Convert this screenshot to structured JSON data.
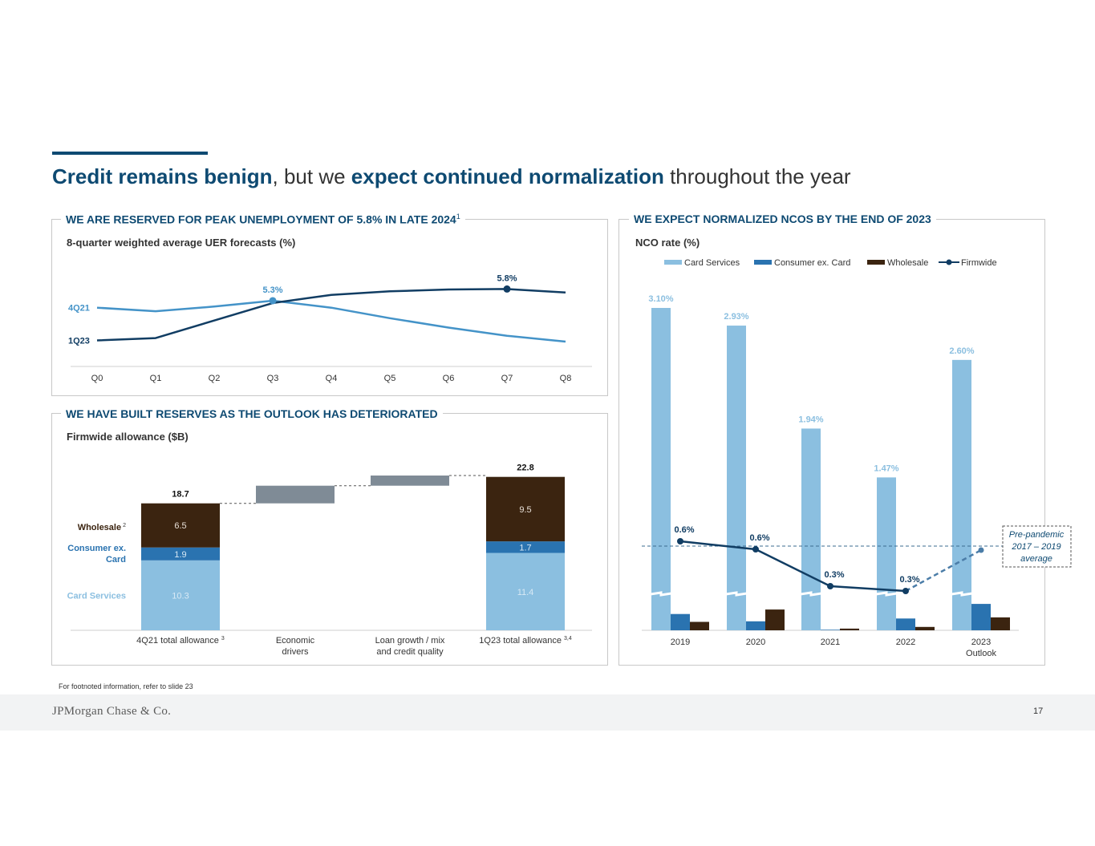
{
  "headline": {
    "part1": "Credit remains benign",
    "part2": ", but we ",
    "part3": "expect continued normalization",
    "part4": " throughout the year"
  },
  "panel_uer": {
    "title": "WE ARE RESERVED FOR PEAK UNEMPLOYMENT OF 5.8% IN LATE 2024",
    "sup": "1",
    "subtitle": "8-quarter weighted average UER forecasts (%)"
  },
  "panel_allowance": {
    "title": "WE HAVE BUILT RESERVES AS THE OUTLOOK HAS DETERIORATED",
    "subtitle": "Firmwide allowance ($B)"
  },
  "panel_nco": {
    "title": "WE EXPECT NORMALIZED NCOS BY THE END OF 2023",
    "subtitle": "NCO rate (%)"
  },
  "footnote": "For footnoted information, refer to slide 23",
  "logo": "JPMorgan Chase & Co.",
  "page_number": "17",
  "colors": {
    "brand": "#0e4a72",
    "card": "#8bbfe0",
    "consumer": "#2a73b0",
    "wholesale": "#3b2410",
    "firmwide": "#113d63",
    "line4q21": "#4493c8",
    "waterfall": "#7f8b96"
  },
  "chart_data": [
    {
      "type": "line",
      "title": "8-quarter weighted average UER forecasts (%)",
      "categories": [
        "Q0",
        "Q1",
        "Q2",
        "Q3",
        "Q4",
        "Q5",
        "Q6",
        "Q7",
        "Q8"
      ],
      "ylim": [
        3.0,
        6.5
      ],
      "series": [
        {
          "name": "4Q21",
          "values": [
            5.0,
            4.85,
            5.05,
            5.3,
            5.0,
            4.55,
            4.15,
            3.8,
            3.55
          ]
        },
        {
          "name": "1Q23",
          "values": [
            3.6,
            3.7,
            4.45,
            5.2,
            5.55,
            5.7,
            5.78,
            5.8,
            5.65
          ]
        }
      ],
      "annotations": [
        {
          "series": "4Q21",
          "category": "Q3",
          "label": "5.3%"
        },
        {
          "series": "1Q23",
          "category": "Q7",
          "label": "5.8%"
        }
      ]
    },
    {
      "type": "bar",
      "subtype": "waterfall",
      "title": "Firmwide allowance ($B)",
      "categories": [
        "4Q21 total allowance",
        "Economic drivers",
        "Loan growth / mix and credit quality",
        "1Q23 total allowance"
      ],
      "category_superscripts": [
        "3",
        "",
        "",
        "3,4"
      ],
      "segments": [
        "Card Services",
        "Consumer ex. Card",
        "Wholesale"
      ],
      "segment_labels": [
        "Card Services",
        "Consumer ex. Card",
        "Wholesale"
      ],
      "segment_superscripts": [
        "",
        "",
        "2"
      ],
      "start": {
        "values": [
          10.3,
          1.9,
          6.5
        ],
        "labels": [
          "10.3",
          "1.9",
          "6.5"
        ],
        "total": 18.7,
        "total_label": "18.7"
      },
      "end": {
        "values": [
          11.4,
          1.7,
          9.5
        ],
        "labels": [
          "11.4",
          "1.7",
          "9.5"
        ],
        "total": 22.8,
        "total_label": "22.8"
      },
      "steps": [
        {
          "name": "Economic drivers",
          "from": 18.7,
          "to": 21.3
        },
        {
          "name": "Loan growth / mix and credit quality",
          "from": 21.3,
          "to": 22.8
        }
      ],
      "ylim": [
        0,
        24
      ]
    },
    {
      "type": "bar",
      "title": "NCO rate (%)",
      "categories": [
        "2019",
        "2020",
        "2021",
        "2022",
        "2023 Outlook"
      ],
      "category_lines": [
        [
          "2019"
        ],
        [
          "2020"
        ],
        [
          "2021"
        ],
        [
          "2022"
        ],
        [
          "2023",
          "Outlook"
        ]
      ],
      "ylim": [
        0,
        3.3
      ],
      "axis_break": 0.45,
      "series": [
        {
          "name": "Card Services",
          "values": [
            3.1,
            2.93,
            1.94,
            1.47,
            2.6
          ],
          "labels": [
            "3.10%",
            "2.93%",
            "1.94%",
            "1.47%",
            "2.60%"
          ]
        },
        {
          "name": "Consumer ex. Card",
          "values": [
            0.29,
            0.16,
            0.01,
            0.21,
            0.47
          ]
        },
        {
          "name": "Wholesale",
          "values": [
            0.15,
            0.37,
            0.03,
            0.06,
            0.23
          ]
        },
        {
          "name": "Firmwide",
          "type": "line",
          "values": [
            0.6,
            0.55,
            0.3,
            0.25,
            0.5
          ],
          "labels": [
            "0.6%",
            "0.6%",
            "0.3%",
            "0.3%",
            ""
          ],
          "projected_from_index": 3
        }
      ],
      "legend": [
        "Card Services",
        "Consumer ex. Card",
        "Wholesale",
        "Firmwide"
      ],
      "reference_line": {
        "label_lines": [
          "Pre-pandemic",
          "2017 – 2019",
          "average"
        ],
        "value": 0.5
      }
    }
  ]
}
